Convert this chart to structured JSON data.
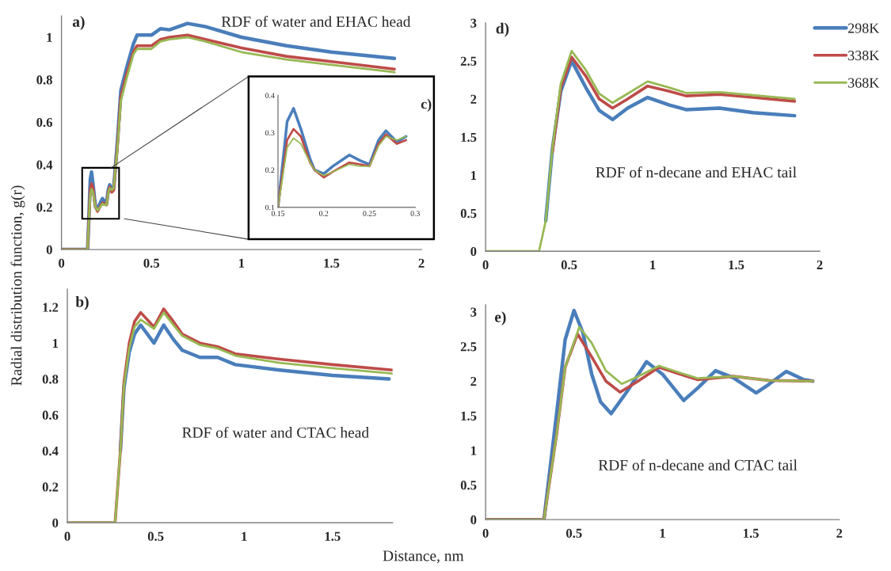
{
  "chart_data": [
    {
      "type": "line",
      "title": "RDF of water and EHAC head",
      "annotations": [
        "a)"
      ],
      "xlim": [
        0,
        2
      ],
      "xticks": [
        0,
        0.5,
        1,
        1.5,
        2
      ],
      "ylim": [
        0,
        1.1
      ],
      "yticks": [
        0,
        0.2,
        0.4,
        0.6,
        0.8,
        1
      ],
      "series": [
        {
          "color": "#4a7ebb",
          "x": [
            0,
            0.145,
            0.15,
            0.16,
            0.167,
            0.175,
            0.185,
            0.19,
            0.2,
            0.21,
            0.228,
            0.24,
            0.25,
            0.26,
            0.268,
            0.28,
            0.29,
            0.31,
            0.33,
            0.36,
            0.4,
            0.42,
            0.5,
            0.55,
            0.6,
            0.7,
            0.8,
            1.0,
            1.25,
            1.5,
            1.85
          ],
          "values": [
            0,
            0,
            0.1,
            0.33,
            0.365,
            0.31,
            0.23,
            0.2,
            0.19,
            0.21,
            0.24,
            0.225,
            0.215,
            0.28,
            0.305,
            0.275,
            0.29,
            0.5,
            0.75,
            0.85,
            0.97,
            1.01,
            1.01,
            1.04,
            1.035,
            1.065,
            1.05,
            1.0,
            0.96,
            0.93,
            0.9
          ]
        },
        {
          "color": "#be4b48",
          "x": [
            0,
            0.145,
            0.15,
            0.16,
            0.167,
            0.175,
            0.185,
            0.19,
            0.2,
            0.21,
            0.228,
            0.24,
            0.25,
            0.26,
            0.268,
            0.28,
            0.29,
            0.31,
            0.33,
            0.36,
            0.4,
            0.42,
            0.5,
            0.55,
            0.6,
            0.7,
            0.8,
            1.0,
            1.25,
            1.5,
            1.85
          ],
          "values": [
            0,
            0,
            0.1,
            0.28,
            0.31,
            0.29,
            0.22,
            0.2,
            0.18,
            0.195,
            0.22,
            0.215,
            0.21,
            0.27,
            0.295,
            0.27,
            0.28,
            0.48,
            0.72,
            0.82,
            0.93,
            0.96,
            0.96,
            0.99,
            1.0,
            1.01,
            0.99,
            0.95,
            0.91,
            0.885,
            0.85
          ]
        },
        {
          "color": "#98b954",
          "x": [
            0,
            0.145,
            0.15,
            0.16,
            0.167,
            0.175,
            0.185,
            0.19,
            0.2,
            0.21,
            0.228,
            0.24,
            0.25,
            0.26,
            0.268,
            0.28,
            0.29,
            0.31,
            0.33,
            0.36,
            0.4,
            0.42,
            0.5,
            0.55,
            0.6,
            0.7,
            0.8,
            1.0,
            1.25,
            1.5,
            1.85
          ],
          "values": [
            0,
            0,
            0.1,
            0.26,
            0.285,
            0.27,
            0.22,
            0.2,
            0.185,
            0.195,
            0.215,
            0.21,
            0.21,
            0.265,
            0.29,
            0.28,
            0.29,
            0.47,
            0.7,
            0.8,
            0.92,
            0.945,
            0.945,
            0.98,
            0.99,
            1.0,
            0.98,
            0.93,
            0.895,
            0.87,
            0.835
          ]
        }
      ]
    },
    {
      "type": "line",
      "annotations": [
        "c)"
      ],
      "xlim": [
        0.15,
        0.3
      ],
      "xticks": [
        0.15,
        0.2,
        0.25,
        0.3
      ],
      "ylim": [
        0.1,
        0.4
      ],
      "yticks": [
        0.1,
        0.2,
        0.3,
        0.4
      ],
      "series": [
        {
          "color": "#4a7ebb",
          "x": [
            0.15,
            0.16,
            0.167,
            0.175,
            0.185,
            0.19,
            0.2,
            0.21,
            0.228,
            0.24,
            0.25,
            0.26,
            0.268,
            0.28,
            0.29
          ],
          "values": [
            0.1,
            0.33,
            0.365,
            0.31,
            0.23,
            0.2,
            0.19,
            0.21,
            0.24,
            0.225,
            0.215,
            0.28,
            0.305,
            0.275,
            0.29
          ]
        },
        {
          "color": "#be4b48",
          "x": [
            0.15,
            0.16,
            0.167,
            0.175,
            0.185,
            0.19,
            0.2,
            0.21,
            0.228,
            0.24,
            0.25,
            0.26,
            0.268,
            0.28,
            0.29
          ],
          "values": [
            0.1,
            0.28,
            0.31,
            0.29,
            0.22,
            0.2,
            0.18,
            0.195,
            0.22,
            0.215,
            0.21,
            0.27,
            0.295,
            0.27,
            0.28
          ]
        },
        {
          "color": "#98b954",
          "x": [
            0.15,
            0.16,
            0.167,
            0.175,
            0.185,
            0.19,
            0.2,
            0.21,
            0.228,
            0.24,
            0.25,
            0.26,
            0.268,
            0.28,
            0.29
          ],
          "values": [
            0.1,
            0.26,
            0.285,
            0.27,
            0.22,
            0.2,
            0.185,
            0.195,
            0.215,
            0.21,
            0.21,
            0.265,
            0.29,
            0.28,
            0.29
          ]
        }
      ]
    },
    {
      "type": "line",
      "title": "RDF of n-decane and EHAC tail",
      "annotations": [
        "d)"
      ],
      "legend": "top right",
      "xlim": [
        0,
        2
      ],
      "xticks": [
        0,
        0.5,
        1,
        1.5,
        2
      ],
      "ylim": [
        0,
        3
      ],
      "yticks": [
        0,
        0.5,
        1,
        1.5,
        2,
        2.5,
        3
      ],
      "series": [
        {
          "name": "298K",
          "color": "#4a7ebb",
          "x": [
            0.36,
            0.4,
            0.45,
            0.515,
            0.6,
            0.68,
            0.76,
            0.85,
            0.97,
            1.1,
            1.2,
            1.4,
            1.6,
            1.85
          ],
          "values": [
            0.4,
            1.35,
            2.1,
            2.5,
            2.15,
            1.85,
            1.73,
            1.88,
            2.02,
            1.92,
            1.86,
            1.88,
            1.82,
            1.78
          ]
        },
        {
          "name": "338K",
          "color": "#be4b48",
          "x": [
            0.4,
            0.45,
            0.515,
            0.6,
            0.68,
            0.76,
            0.85,
            0.97,
            1.1,
            1.2,
            1.4,
            1.6,
            1.85
          ],
          "values": [
            1.3,
            2.15,
            2.55,
            2.3,
            2.0,
            1.88,
            2.0,
            2.17,
            2.1,
            2.04,
            2.06,
            2.02,
            1.97
          ]
        },
        {
          "name": "368K",
          "color": "#98b954",
          "x": [
            0,
            0.32,
            0.36,
            0.4,
            0.45,
            0.515,
            0.6,
            0.68,
            0.76,
            0.85,
            0.97,
            1.1,
            1.2,
            1.4,
            1.6,
            1.85
          ],
          "values": [
            0,
            0,
            0.4,
            1.35,
            2.2,
            2.63,
            2.38,
            2.07,
            1.95,
            2.07,
            2.23,
            2.15,
            2.08,
            2.09,
            2.05,
            2.0
          ]
        }
      ]
    },
    {
      "type": "line",
      "title": "RDF of water and CTAC head",
      "annotations": [
        "b)"
      ],
      "xlabel": "Distance, nm",
      "ylabel": "Radial distribution function, g(r)",
      "xlim": [
        0,
        1.84
      ],
      "xticks": [
        0,
        0.5,
        1,
        1.5
      ],
      "ylim": [
        0,
        1.3
      ],
      "yticks": [
        0,
        0.2,
        0.4,
        0.6,
        0.8,
        1,
        1.2
      ],
      "series": [
        {
          "color": "#4a7ebb",
          "x": [
            0.3,
            0.32,
            0.35,
            0.38,
            0.415,
            0.49,
            0.545,
            0.6,
            0.65,
            0.75,
            0.85,
            0.95,
            1.2,
            1.5,
            1.82
          ],
          "values": [
            0.4,
            0.75,
            0.95,
            1.05,
            1.1,
            1.0,
            1.1,
            1.02,
            0.96,
            0.92,
            0.92,
            0.88,
            0.85,
            0.82,
            0.8
          ]
        },
        {
          "color": "#be4b48",
          "x": [
            0,
            0.27,
            0.3,
            0.32,
            0.35,
            0.38,
            0.415,
            0.49,
            0.545,
            0.6,
            0.65,
            0.75,
            0.85,
            0.95,
            1.2,
            1.5,
            1.84
          ],
          "values": [
            0,
            0,
            0.4,
            0.78,
            1.0,
            1.12,
            1.17,
            1.09,
            1.19,
            1.12,
            1.05,
            1.0,
            0.98,
            0.94,
            0.91,
            0.88,
            0.85
          ]
        },
        {
          "color": "#98b954",
          "x": [
            0,
            0.27,
            0.3,
            0.32,
            0.35,
            0.38,
            0.415,
            0.49,
            0.545,
            0.6,
            0.65,
            0.75,
            0.85,
            0.95,
            1.2,
            1.5,
            1.84
          ],
          "values": [
            0,
            0,
            0.4,
            0.76,
            0.97,
            1.09,
            1.13,
            1.08,
            1.17,
            1.1,
            1.04,
            0.99,
            0.97,
            0.93,
            0.89,
            0.86,
            0.83
          ]
        }
      ]
    },
    {
      "type": "line",
      "title": "RDF of n-decane and CTAC tail",
      "annotations": [
        "e)"
      ],
      "xlim": [
        0,
        2
      ],
      "xticks": [
        0,
        0.5,
        1,
        1.5,
        2
      ],
      "ylim": [
        0,
        3.1
      ],
      "yticks": [
        0,
        0.5,
        1,
        1.5,
        2,
        2.5,
        3
      ],
      "series": [
        {
          "color": "#4a7ebb",
          "x": [
            0,
            0.33,
            0.4,
            0.45,
            0.5,
            0.55,
            0.6,
            0.65,
            0.71,
            0.8,
            0.91,
            1.0,
            1.12,
            1.2,
            1.3,
            1.4,
            1.53,
            1.6,
            1.7,
            1.8,
            1.85
          ],
          "values": [
            0,
            0,
            1.5,
            2.6,
            3.02,
            2.7,
            2.1,
            1.7,
            1.53,
            1.85,
            2.28,
            2.1,
            1.72,
            1.9,
            2.15,
            2.05,
            1.83,
            1.95,
            2.14,
            2.02,
            2.0
          ]
        },
        {
          "color": "#be4b48",
          "x": [
            0,
            0.33,
            0.4,
            0.45,
            0.52,
            0.6,
            0.68,
            0.76,
            0.85,
            0.98,
            1.1,
            1.2,
            1.4,
            1.6,
            1.85
          ],
          "values": [
            0,
            0,
            1.2,
            2.2,
            2.68,
            2.35,
            2.0,
            1.84,
            1.98,
            2.2,
            2.1,
            2.02,
            2.07,
            2.01,
            2.0
          ]
        },
        {
          "color": "#98b954",
          "x": [
            0,
            0.33,
            0.4,
            0.45,
            0.53,
            0.6,
            0.68,
            0.77,
            0.85,
            0.98,
            1.1,
            1.2,
            1.4,
            1.6,
            1.85
          ],
          "values": [
            0,
            0,
            1.2,
            2.2,
            2.78,
            2.55,
            2.15,
            1.96,
            2.05,
            2.22,
            2.12,
            2.04,
            2.07,
            2.01,
            2.0
          ]
        }
      ]
    }
  ]
}
